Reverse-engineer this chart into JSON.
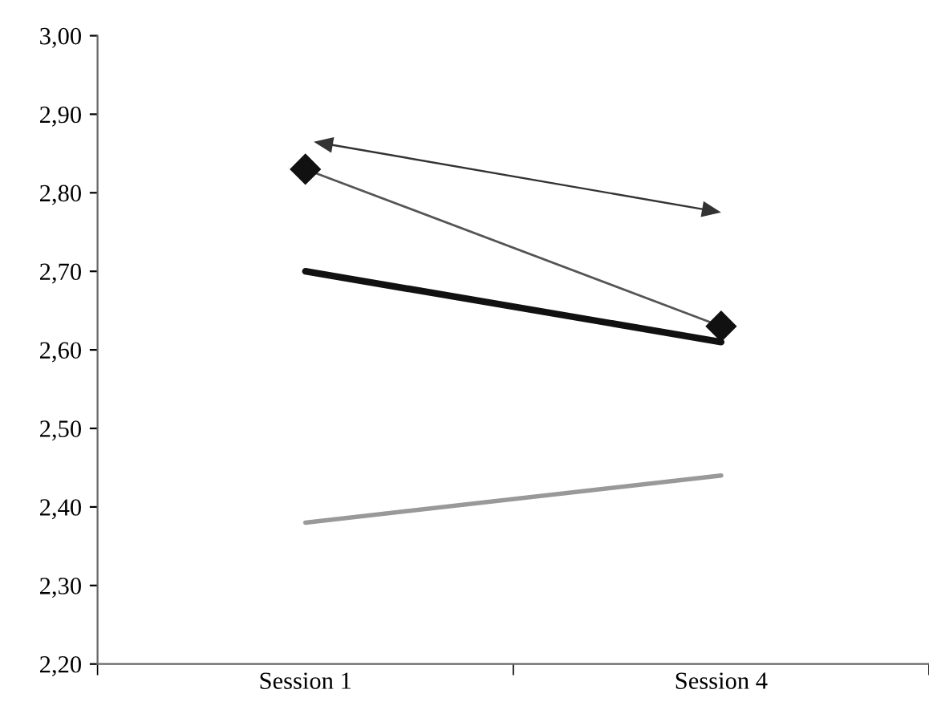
{
  "chart_data": {
    "type": "line",
    "categories": [
      "Session 1",
      "Session 4"
    ],
    "series": [
      {
        "color": "#555555",
        "values": [
          2.83,
          2.63
        ],
        "marker": "diamond"
      },
      {
        "color": "#111111",
        "values": [
          2.7,
          2.61
        ],
        "marker": "none"
      },
      {
        "color": "#999999",
        "values": [
          2.38,
          2.44
        ],
        "marker": "none"
      }
    ],
    "ylim": [
      2.2,
      3.0
    ],
    "yticks": [
      {
        "value": 2.2,
        "label": "2,20"
      },
      {
        "value": 2.3,
        "label": "2,30"
      },
      {
        "value": 2.4,
        "label": "2,40"
      },
      {
        "value": 2.5,
        "label": "2,50"
      },
      {
        "value": 2.6,
        "label": "2,60"
      },
      {
        "value": 2.7,
        "label": "2,70"
      },
      {
        "value": 2.8,
        "label": "2,80"
      },
      {
        "value": 2.9,
        "label": "2,90"
      },
      {
        "value": 3.0,
        "label": "3,00"
      }
    ],
    "grid": false,
    "legend": false,
    "line_style": "solid"
  }
}
